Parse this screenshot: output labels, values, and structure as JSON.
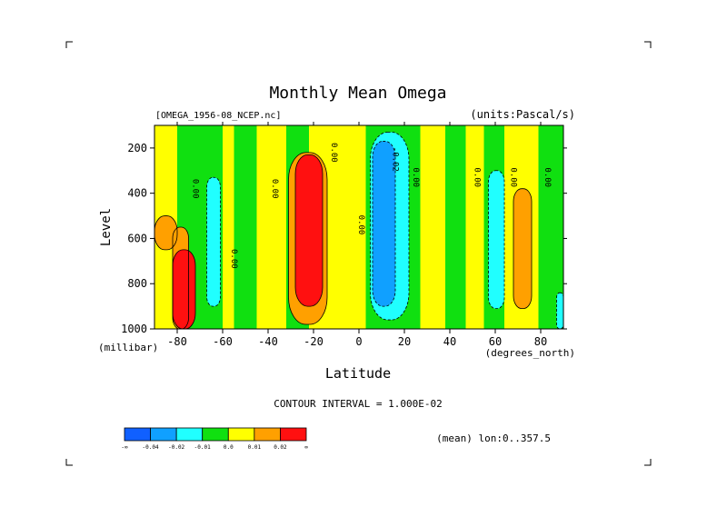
{
  "chart_data": {
    "type": "heatmap",
    "title": "Monthly Mean Omega",
    "dataset_label": "[OMEGA_1956-08_NCEP.nc]",
    "units_label": "(units:Pascal/s)",
    "xlabel": "Latitude",
    "x_units": "(degrees_north)",
    "ylabel": "Level",
    "y_units": "(millibar)",
    "xlim": [
      -90,
      90
    ],
    "ylim": [
      1000,
      100
    ],
    "x_ticks": [
      -80,
      -60,
      -40,
      -20,
      0,
      20,
      40,
      60,
      80
    ],
    "x_tick_labels": [
      "-80",
      "-60",
      "-40",
      "-20",
      "0",
      "20",
      "40",
      "60",
      "80"
    ],
    "y_ticks": [
      200,
      400,
      600,
      800,
      1000
    ],
    "y_tick_labels": [
      "200",
      "400",
      "600",
      "800",
      "1000"
    ],
    "contour_interval_text": "CONTOUR INTERVAL = 1.000E-02",
    "subset_text": "(mean) lon:0..357.5",
    "levels": [
      -0.04,
      -0.02,
      -0.01,
      0.0,
      0.01,
      0.02
    ],
    "colorbar": {
      "colors": [
        "#1060ff",
        "#10a0ff",
        "#20ffff",
        "#10e010",
        "#ffff00",
        "#ffa000",
        "#ff1010"
      ],
      "labels": [
        "-∞",
        "-0.04",
        "-0.02",
        "-0.01",
        "0.0",
        "0.01",
        "0.02",
        "∞"
      ]
    },
    "contour_labels": [
      {
        "text": "0.00",
        "lat": -73,
        "lev": 380
      },
      {
        "text": "0.00",
        "lat": -56,
        "lev": 690
      },
      {
        "text": "0.00",
        "lat": -38,
        "lev": 380
      },
      {
        "text": "0.00",
        "lat": -12,
        "lev": 220
      },
      {
        "text": "0.00",
        "lat": 0,
        "lev": 540
      },
      {
        "text": "-0.02",
        "lat": 15,
        "lev": 250
      },
      {
        "text": "0.00",
        "lat": 24,
        "lev": 330
      },
      {
        "text": "0.00",
        "lat": 51,
        "lev": 330
      },
      {
        "text": "0.00",
        "lat": 67,
        "lev": 330
      },
      {
        "text": "0.00",
        "lat": 82,
        "lev": 330
      }
    ],
    "regions": [
      {
        "level": "0.00-0.01",
        "lat": [
          -90,
          -80
        ],
        "lev": [
          100,
          1000
        ]
      },
      {
        "level": "-0.01-0.00",
        "lat": [
          -80,
          -60
        ],
        "lev": [
          100,
          1000
        ]
      },
      {
        "level": "0.00-0.01",
        "lat": [
          -60,
          -55
        ],
        "lev": [
          100,
          1000
        ]
      },
      {
        "level": "-0.01-0.00",
        "lat": [
          -55,
          -45
        ],
        "lev": [
          100,
          1000
        ]
      },
      {
        "level": "0.00-0.01",
        "lat": [
          -45,
          -32
        ],
        "lev": [
          100,
          1000
        ]
      },
      {
        "level": "-0.01-0.00",
        "lat": [
          -32,
          -22
        ],
        "lev": [
          100,
          1000
        ]
      },
      {
        "level": "0.00-0.01",
        "lat": [
          -22,
          3
        ],
        "lev": [
          100,
          1000
        ]
      },
      {
        "level": "-0.01-0.00",
        "lat": [
          3,
          27
        ],
        "lev": [
          100,
          1000
        ]
      },
      {
        "level": "0.00-0.01",
        "lat": [
          27,
          38
        ],
        "lev": [
          100,
          1000
        ]
      },
      {
        "level": "-0.01-0.00",
        "lat": [
          38,
          47
        ],
        "lev": [
          100,
          1000
        ]
      },
      {
        "level": "0.00-0.01",
        "lat": [
          47,
          55
        ],
        "lev": [
          100,
          1000
        ]
      },
      {
        "level": "-0.01-0.00",
        "lat": [
          55,
          64
        ],
        "lev": [
          100,
          1000
        ]
      },
      {
        "level": "0.00-0.01",
        "lat": [
          64,
          79
        ],
        "lev": [
          100,
          1000
        ]
      },
      {
        "level": "-0.01-0.00",
        "lat": [
          79,
          90
        ],
        "lev": [
          100,
          1000
        ]
      },
      {
        "level": "0.01-0.02",
        "lat": [
          -90,
          -80
        ],
        "lev": [
          500,
          650
        ]
      },
      {
        "level": "0.01-0.02",
        "lat": [
          -82,
          -75
        ],
        "lev": [
          550,
          1000
        ]
      },
      {
        "level": "0.02-∞",
        "lat": [
          -82,
          -72
        ],
        "lev": [
          650,
          1000
        ]
      },
      {
        "level": "-0.02--0.01",
        "lat": [
          -67,
          -61
        ],
        "lev": [
          330,
          900
        ]
      },
      {
        "level": "0.01-0.02",
        "lat": [
          -31,
          -14
        ],
        "lev": [
          220,
          980
        ]
      },
      {
        "level": "0.02-∞",
        "lat": [
          -28,
          -16
        ],
        "lev": [
          230,
          900
        ]
      },
      {
        "level": "-0.02--0.01",
        "lat": [
          5,
          22
        ],
        "lev": [
          130,
          960
        ]
      },
      {
        "level": "-0.04--0.02",
        "lat": [
          6,
          16
        ],
        "lev": [
          170,
          900
        ]
      },
      {
        "level": "-0.02--0.01",
        "lat": [
          57,
          64
        ],
        "lev": [
          300,
          910
        ]
      },
      {
        "level": "0.01-0.02",
        "lat": [
          68,
          76
        ],
        "lev": [
          380,
          910
        ]
      },
      {
        "level": "-0.02--0.01",
        "lat": [
          87,
          90
        ],
        "lev": [
          840,
          1000
        ]
      }
    ]
  }
}
